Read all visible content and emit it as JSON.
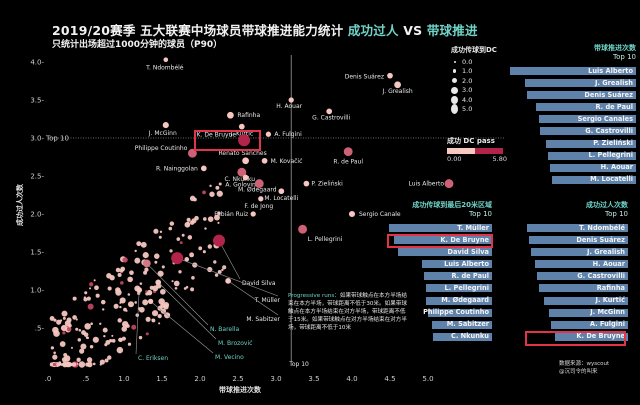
{
  "header": {
    "title_main": "2019/20赛季 五大联赛中场球员带球推进能力统计 ",
    "title_hl1": "成功过人",
    "title_vs": " VS ",
    "title_hl2": "带球推进",
    "subtitle": "只统计出场超过1000分钟的球员（P90）"
  },
  "legend_size": {
    "title": "成功传球到DC",
    "items": [
      "0.0",
      "1.0",
      "2.0",
      "3.0",
      "4.0",
      "5.0"
    ]
  },
  "legend_color": {
    "title": "成功 DC pass",
    "min": "0.00",
    "max": "5.80",
    "color_low": "#f7c9c0",
    "color_high": "#b3244a"
  },
  "panels": {
    "progressive": {
      "title": "带球推进次数",
      "subtitle": "Top 10",
      "items": [
        "Luis Alberto",
        "J. Grealish",
        "Denis Suárez",
        "R. de Paul",
        "Sergio Canales",
        "G. Castrovilli",
        "P. Zieliński",
        "L. Pellegrini",
        "H. Aouar",
        "M. Locatelli"
      ],
      "widths": [
        126,
        111,
        109,
        100,
        97,
        96,
        90,
        88,
        86,
        84
      ]
    },
    "final_third_passes": {
      "title": "成功传球到最后20米区域",
      "subtitle": "Top 10",
      "items": [
        "T. Müller",
        "K. De Bruyne",
        "David Silva",
        "Luis Alberto",
        "R. de Paul",
        "L. Pellegrini",
        "M. Ødegaard",
        "Philippe Coutinho",
        "M. Sabitzer",
        "C. Nkunku"
      ],
      "widths": [
        103,
        98,
        94,
        70,
        68,
        66,
        66,
        64,
        60,
        59
      ]
    },
    "dribbles": {
      "title": "成功过人次数",
      "subtitle": "Top 10",
      "items": [
        "T. Ndombélé",
        "Denis Suárez",
        "J. Grealish",
        "H. Aouar",
        "G. Castrovilli",
        "Rafinha",
        "J. Kurtić",
        "J. McGinn",
        "A. Fulgini",
        "K. De Bruyne"
      ],
      "widths": [
        101,
        99,
        97,
        93,
        91,
        89,
        84,
        79,
        77,
        73
      ]
    }
  },
  "note": {
    "key": "Progressive runs：",
    "text": "如果带球触点在本方半场结束在本方半场，带球距离不低于30米。如果带球触点在本方半场结束在对方半场，带球距离不低于15米。如果带球触点在对方半场结束在对方半场，带球距离不低于10米"
  },
  "source": {
    "line1": "数据来源：wyscout",
    "line2": "@沉司令的叫来"
  },
  "chart_data": {
    "type": "scatter",
    "title": "2019/20赛季 五大联赛中场球员带球推进能力统计 成功过人 VS 带球推进",
    "subtitle": "只统计出场超过1000分钟的球员（P90）",
    "xlabel": "带球推进次数",
    "ylabel": "成功过人次数",
    "xlim": [
      0,
      5.0
    ],
    "ylim": [
      0,
      4.0
    ],
    "xticks": [
      ".0",
      ".5",
      "1.0",
      "1.5",
      "2.0",
      "2.5",
      "3.0",
      "3.5",
      "4.0",
      "4.5",
      "5.0"
    ],
    "yticks": [
      ".5",
      "1.0",
      "1.5",
      "2.0",
      "2.5",
      "3.0",
      "3.5",
      "4.0"
    ],
    "reference_lines": [
      {
        "axis": "y",
        "value": 3.0,
        "label": "Top 10"
      },
      {
        "axis": "x",
        "value": 3.2,
        "label": "Top 10"
      }
    ],
    "size_encoding": "成功传球到DC (0–5)",
    "color_encoding": "成功 DC pass (0.00–5.80)",
    "labeled_points": [
      {
        "name": "T. Ndombélé",
        "x": 1.55,
        "y": 4.03,
        "dc": 0.5
      },
      {
        "name": "Denis Suárez",
        "x": 4.5,
        "y": 3.82,
        "dc": 1.0
      },
      {
        "name": "J. Grealish",
        "x": 4.6,
        "y": 3.7,
        "dc": 1.5
      },
      {
        "name": "H. Aouar",
        "x": 3.2,
        "y": 3.5,
        "dc": 0.8
      },
      {
        "name": "G. Castrovilli",
        "x": 3.7,
        "y": 3.35,
        "dc": 1.0
      },
      {
        "name": "Rafinha",
        "x": 2.4,
        "y": 3.3,
        "dc": 1.5
      },
      {
        "name": "J. Kurtić",
        "x": 2.55,
        "y": 3.15,
        "dc": 1.0
      },
      {
        "name": "J. McGinn",
        "x": 1.55,
        "y": 3.17,
        "dc": 1.2
      },
      {
        "name": "A. Fulgini",
        "x": 2.9,
        "y": 3.05,
        "dc": 0.8
      },
      {
        "name": "K. De Bruyne",
        "x": 2.58,
        "y": 2.97,
        "dc": 4.0
      },
      {
        "name": "Philippe Coutinho",
        "x": 1.9,
        "y": 2.8,
        "dc": 2.5
      },
      {
        "name": "R. de Paul",
        "x": 3.95,
        "y": 2.82,
        "dc": 2.5
      },
      {
        "name": "Renato Sanches",
        "x": 2.6,
        "y": 2.7,
        "dc": 1.5
      },
      {
        "name": "M. Kovačić",
        "x": 2.85,
        "y": 2.7,
        "dc": 1.0
      },
      {
        "name": "R. Nainggolan",
        "x": 2.05,
        "y": 2.6,
        "dc": 1.0
      },
      {
        "name": "C. Nkunku",
        "x": 2.55,
        "y": 2.55,
        "dc": 2.5
      },
      {
        "name": "A. Golovin",
        "x": 2.6,
        "y": 2.48,
        "dc": 1.0
      },
      {
        "name": "M. Ødegaard",
        "x": 2.78,
        "y": 2.4,
        "dc": 2.5
      },
      {
        "name": "P. Zieliński",
        "x": 3.4,
        "y": 2.4,
        "dc": 1.0
      },
      {
        "name": "Luis Alberto",
        "x": 5.3,
        "y": 2.4,
        "dc": 2.5
      },
      {
        "name": "M. Locatelli",
        "x": 3.07,
        "y": 2.3,
        "dc": 1.0
      },
      {
        "name": "F. de Jong",
        "x": 2.8,
        "y": 2.2,
        "dc": 0.8
      },
      {
        "name": "Fabián Ruiz",
        "x": 2.7,
        "y": 2.0,
        "dc": 0.8
      },
      {
        "name": "Sergio Canale",
        "x": 4.0,
        "y": 2.0,
        "dc": 1.2
      },
      {
        "name": "L. Pellegrini",
        "x": 3.35,
        "y": 1.8,
        "dc": 2.5
      },
      {
        "name": "David Silva",
        "x": 2.25,
        "y": 1.65,
        "dc": 4.0
      },
      {
        "name": "T. Müller",
        "x": 1.7,
        "y": 1.42,
        "dc": 4.0
      },
      {
        "name": "M. Sabitzer",
        "x": 2.37,
        "y": 1.12,
        "dc": 1.0
      },
      {
        "name": "N. Barella",
        "x": 1.3,
        "y": 1.35,
        "dc": 2.0
      },
      {
        "name": "M. Brozović",
        "x": 1.45,
        "y": 1.1,
        "dc": 1.0
      },
      {
        "name": "M. Vecino",
        "x": 1.35,
        "y": 0.85,
        "dc": 0.8
      },
      {
        "name": "C. Eriksen",
        "x": 1.2,
        "y": 1.0,
        "dc": 1.0
      }
    ]
  }
}
